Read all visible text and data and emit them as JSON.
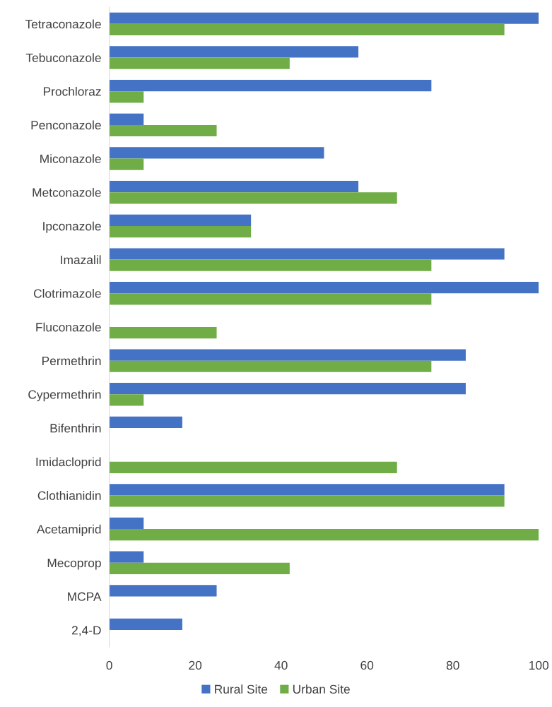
{
  "chart_data": {
    "type": "bar",
    "orientation": "horizontal",
    "categories": [
      "Tetraconazole",
      "Tebuconazole",
      "Prochloraz",
      "Penconazole",
      "Miconazole",
      "Metconazole",
      "Ipconazole",
      "Imazalil",
      "Clotrimazole",
      "Fluconazole",
      "Permethrin",
      "Cypermethrin",
      "Bifenthrin",
      "Imidacloprid",
      "Clothianidin",
      "Acetamiprid",
      "Mecoprop",
      "MCPA",
      "2,4-D"
    ],
    "series": [
      {
        "name": "Rural Site",
        "color": "#4472c4",
        "values": [
          100,
          58,
          75,
          8,
          50,
          58,
          33,
          92,
          100,
          0,
          83,
          83,
          17,
          0,
          92,
          8,
          8,
          25,
          17
        ]
      },
      {
        "name": "Urban Site",
        "color": "#70ad47",
        "values": [
          92,
          42,
          8,
          25,
          8,
          67,
          33,
          75,
          75,
          25,
          75,
          8,
          0,
          67,
          92,
          100,
          42,
          0,
          0
        ]
      }
    ],
    "xlim": [
      0,
      100
    ],
    "xticks": [
      0,
      20,
      40,
      60,
      80,
      100
    ],
    "grid": false,
    "legend": "bottom"
  }
}
